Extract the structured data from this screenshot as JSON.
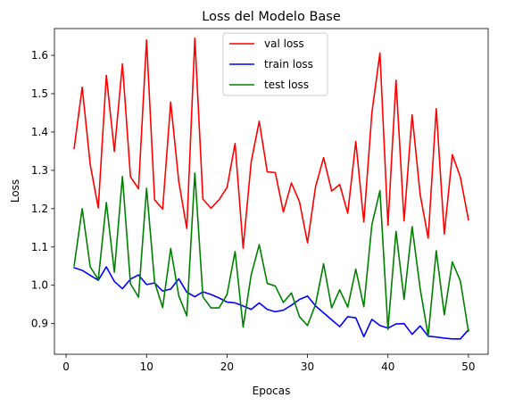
{
  "chart_data": {
    "type": "line",
    "title": "Loss del Modelo Base",
    "xlabel": "Epocas",
    "ylabel": "Loss",
    "xlim": [
      -1.45,
      52.45
    ],
    "ylim": [
      0.82,
      1.67
    ],
    "xticks": [
      0,
      10,
      20,
      30,
      40,
      50
    ],
    "yticks": [
      0.9,
      1.0,
      1.1,
      1.2,
      1.3,
      1.4,
      1.5,
      1.6
    ],
    "grid": false,
    "legend_position": "top-center",
    "x": [
      1,
      2,
      3,
      4,
      5,
      6,
      7,
      8,
      9,
      10,
      11,
      12,
      13,
      14,
      15,
      16,
      17,
      18,
      19,
      20,
      21,
      22,
      23,
      24,
      25,
      26,
      27,
      28,
      29,
      30,
      31,
      32,
      33,
      34,
      35,
      36,
      37,
      38,
      39,
      40,
      41,
      42,
      43,
      44,
      45,
      46,
      47,
      48,
      49,
      50
    ],
    "series": [
      {
        "name": "val loss",
        "color": "#ff0000",
        "values": [
          1.357,
          1.517,
          1.315,
          1.202,
          1.548,
          1.349,
          1.578,
          1.283,
          1.252,
          1.64,
          1.223,
          1.199,
          1.478,
          1.271,
          1.148,
          1.645,
          1.225,
          1.201,
          1.223,
          1.255,
          1.37,
          1.097,
          1.322,
          1.428,
          1.296,
          1.294,
          1.191,
          1.267,
          1.218,
          1.111,
          1.257,
          1.333,
          1.246,
          1.263,
          1.188,
          1.375,
          1.165,
          1.45,
          1.606,
          1.157,
          1.535,
          1.168,
          1.445,
          1.237,
          1.123,
          1.461,
          1.134,
          1.341,
          1.282,
          1.171
        ]
      },
      {
        "name": "train loss",
        "color": "#0000ff",
        "values": [
          1.046,
          1.039,
          1.026,
          1.013,
          1.048,
          1.01,
          0.991,
          1.016,
          1.027,
          1.002,
          1.006,
          0.985,
          0.99,
          1.017,
          0.982,
          0.97,
          0.983,
          0.976,
          0.967,
          0.956,
          0.954,
          0.946,
          0.937,
          0.954,
          0.937,
          0.931,
          0.935,
          0.948,
          0.963,
          0.972,
          0.946,
          0.928,
          0.91,
          0.892,
          0.918,
          0.915,
          0.866,
          0.911,
          0.895,
          0.888,
          0.899,
          0.9,
          0.872,
          0.894,
          0.867,
          0.865,
          0.862,
          0.86,
          0.86,
          0.884
        ]
      },
      {
        "name": "test loss",
        "color": "#008000",
        "values": [
          1.051,
          1.2,
          1.048,
          1.015,
          1.216,
          1.034,
          1.284,
          1.004,
          0.969,
          1.253,
          1.008,
          0.942,
          1.096,
          0.973,
          0.92,
          1.293,
          0.97,
          0.941,
          0.941,
          0.976,
          1.088,
          0.891,
          1.027,
          1.106,
          1.005,
          0.998,
          0.955,
          0.98,
          0.918,
          0.895,
          0.95,
          1.056,
          0.941,
          0.988,
          0.943,
          1.042,
          0.944,
          1.158,
          1.247,
          0.885,
          1.141,
          0.963,
          1.153,
          0.991,
          0.868,
          1.09,
          0.923,
          1.061,
          1.011,
          0.88
        ]
      }
    ]
  }
}
